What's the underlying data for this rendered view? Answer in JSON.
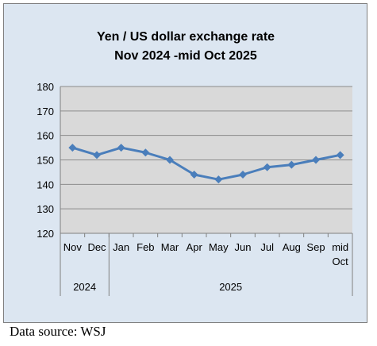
{
  "chart_data": {
    "type": "line",
    "title_lines": [
      "Yen / US dollar exchange rate",
      "Nov 2024  -mid Oct 2025"
    ],
    "categories": [
      "Nov",
      "Dec",
      "Jan",
      "Feb",
      "Mar",
      "Apr",
      "May",
      "Jun",
      "Jul",
      "Aug",
      "Sep",
      "mid Oct"
    ],
    "category_lines": [
      [
        "Nov"
      ],
      [
        "Dec"
      ],
      [
        "Jan"
      ],
      [
        "Feb"
      ],
      [
        "Mar"
      ],
      [
        "Apr"
      ],
      [
        "May"
      ],
      [
        "Jun"
      ],
      [
        "Jul"
      ],
      [
        "Aug"
      ],
      [
        "Sep"
      ],
      [
        "mid",
        "Oct"
      ]
    ],
    "groups": [
      {
        "label": "2024",
        "count": 2
      },
      {
        "label": "2025",
        "count": 10
      }
    ],
    "series": [
      {
        "values": [
          155,
          152,
          155,
          153,
          150,
          144,
          142,
          144,
          147,
          148,
          150,
          152
        ]
      }
    ],
    "ylim": [
      120,
      180
    ],
    "yticks": [
      120,
      130,
      140,
      150,
      160,
      170,
      180
    ],
    "grid": true,
    "colors": {
      "line": "#4a7ebb",
      "plot_bg": "#d9d9d9",
      "chart_bg": "#dce6f1",
      "grid": "#8c8c8c"
    }
  },
  "source": "Data source: WSJ"
}
